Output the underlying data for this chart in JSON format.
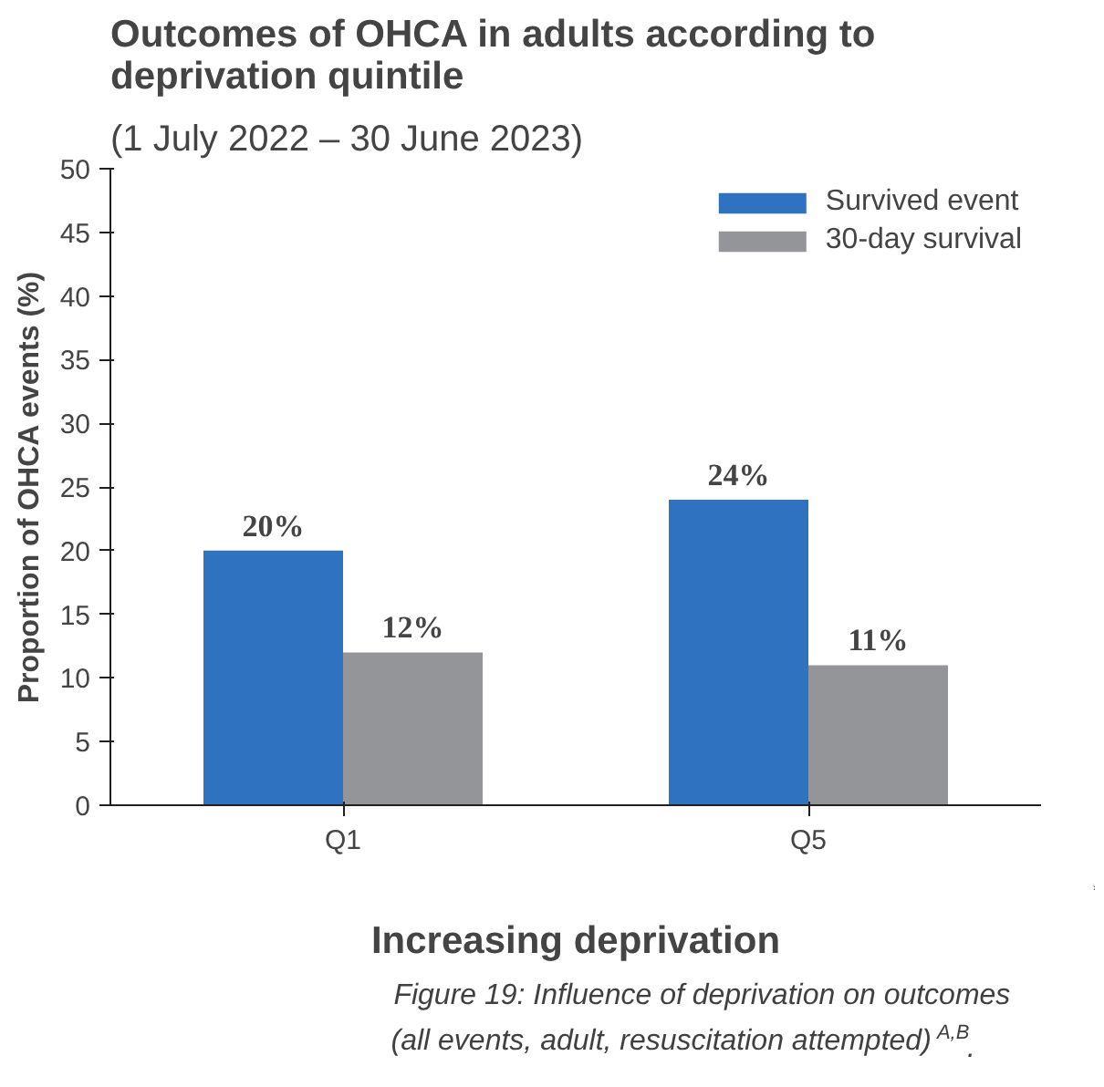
{
  "chart_data": {
    "type": "bar",
    "title": "Outcomes of OHCA in adults according to deprivation quintile",
    "subtitle": "(1 July 2022 – 30 June 2023)",
    "xlabel": "Increasing deprivation",
    "ylabel": "Proportion of OHCA events (%)",
    "categories": [
      "Q1",
      "Q5"
    ],
    "series": [
      {
        "name": "Survived event",
        "color": "#2e72c0",
        "values": [
          20,
          24
        ],
        "value_labels": [
          "20%",
          "24%"
        ]
      },
      {
        "name": "30-day survival",
        "color": "#939598",
        "values": [
          12,
          11
        ],
        "value_labels": [
          "12%",
          "11%"
        ]
      }
    ],
    "ylim": [
      0,
      50
    ],
    "yticks": [
      0,
      5,
      10,
      15,
      20,
      25,
      30,
      35,
      40,
      45,
      50
    ],
    "grid": false,
    "legend": "top right",
    "annotations": [
      "Figure 19: Influence of deprivation on outcomes",
      "(all events, adult, resuscitation attempted)$^{A,B}$."
    ]
  }
}
